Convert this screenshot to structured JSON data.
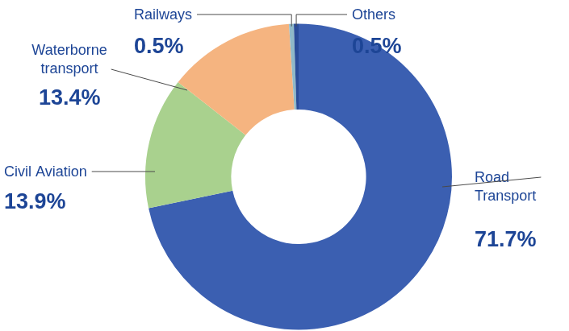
{
  "chart_data": {
    "type": "doughnut",
    "categories": [
      "Road Transport",
      "Civil Aviation",
      "Waterborne transport",
      "Railways",
      "Others"
    ],
    "values": [
      71.7,
      13.9,
      13.4,
      0.5,
      0.5
    ],
    "value_labels": [
      "71.7%",
      "13.9%",
      "13.4%",
      "0.5%",
      "0.5%"
    ],
    "colors": [
      "#3b5fb1",
      "#a9d18e",
      "#f5b480",
      "#8fb9c8",
      "#2a4c98"
    ],
    "data_labels": true
  }
}
